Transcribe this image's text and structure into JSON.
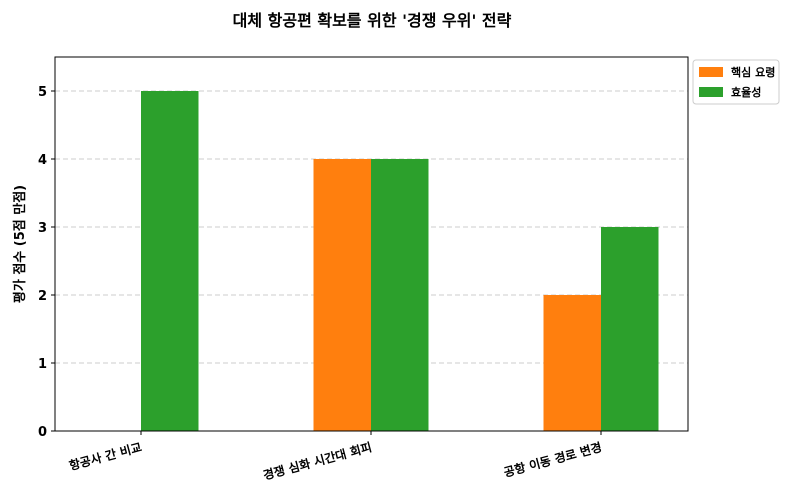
{
  "chart_data": {
    "type": "bar",
    "title": "대체 항공편 확보를 위한 '경쟁 우위' 전략",
    "y_label": "평가 점수 (5점 만점)",
    "categories": [
      "항공사 간 비교",
      "경쟁 심화 시간대 회피",
      "공항 이동 경로 변경"
    ],
    "series": [
      {
        "name": "핵심 요령",
        "color": "#ff7f0e",
        "values": [
          0,
          4,
          2
        ]
      },
      {
        "name": "효율성",
        "color": "#2ca02c",
        "values": [
          5,
          4,
          3
        ]
      }
    ],
    "ylim": [
      0,
      5.5
    ],
    "yticks": [
      0,
      1,
      2,
      3,
      4,
      5
    ],
    "grid": true,
    "legend": "outside-upper-right"
  }
}
